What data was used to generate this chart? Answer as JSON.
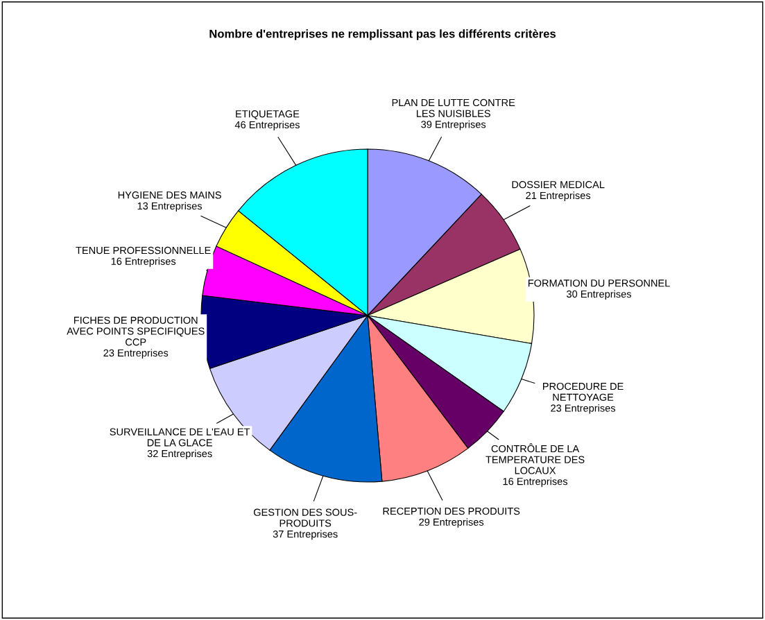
{
  "chart_data": {
    "type": "pie",
    "title": "Nombre d'entreprises ne remplissant pas les différents critères",
    "categories": [
      "PLAN DE LUTTE CONTRE\nLES NUISIBLES",
      "DOSSIER MEDICAL",
      "FORMATION DU PERSONNEL",
      "PROCEDURE DE\nNETTOYAGE",
      "CONTRÔLE DE LA\nTEMPERATURE DES\nLOCAUX",
      "RECEPTION DES PRODUITS",
      "GESTION DES SOUS-\nPRODUITS",
      "SURVEILLANCE DE L'EAU ET\nDE LA GLACE",
      "FICHES DE PRODUCTION\nAVEC POINTS SPECIFIQUES\nCCP",
      "TENUE PROFESSIONNELLE",
      "HYGIENE DES MAINS",
      "ETIQUETAGE"
    ],
    "values": [
      39,
      21,
      30,
      23,
      16,
      29,
      37,
      32,
      23,
      16,
      13,
      46
    ],
    "value_labels": [
      "39 Entreprises",
      "21 Entreprises",
      "30 Entreprises",
      "23 Entreprises",
      "16 Entreprises",
      "29 Entreprises",
      "37 Entreprises",
      "32 Entreprises",
      "23 Entreprises",
      "16 Entreprises",
      "13 Entreprises",
      "46 Entreprises"
    ],
    "colors": [
      "#9999ff",
      "#993366",
      "#ffffcc",
      "#ccffff",
      "#660066",
      "#ff8080",
      "#0066cc",
      "#ccccff",
      "#000080",
      "#ff00ff",
      "#ffff00",
      "#00ffff"
    ],
    "legend": false
  }
}
